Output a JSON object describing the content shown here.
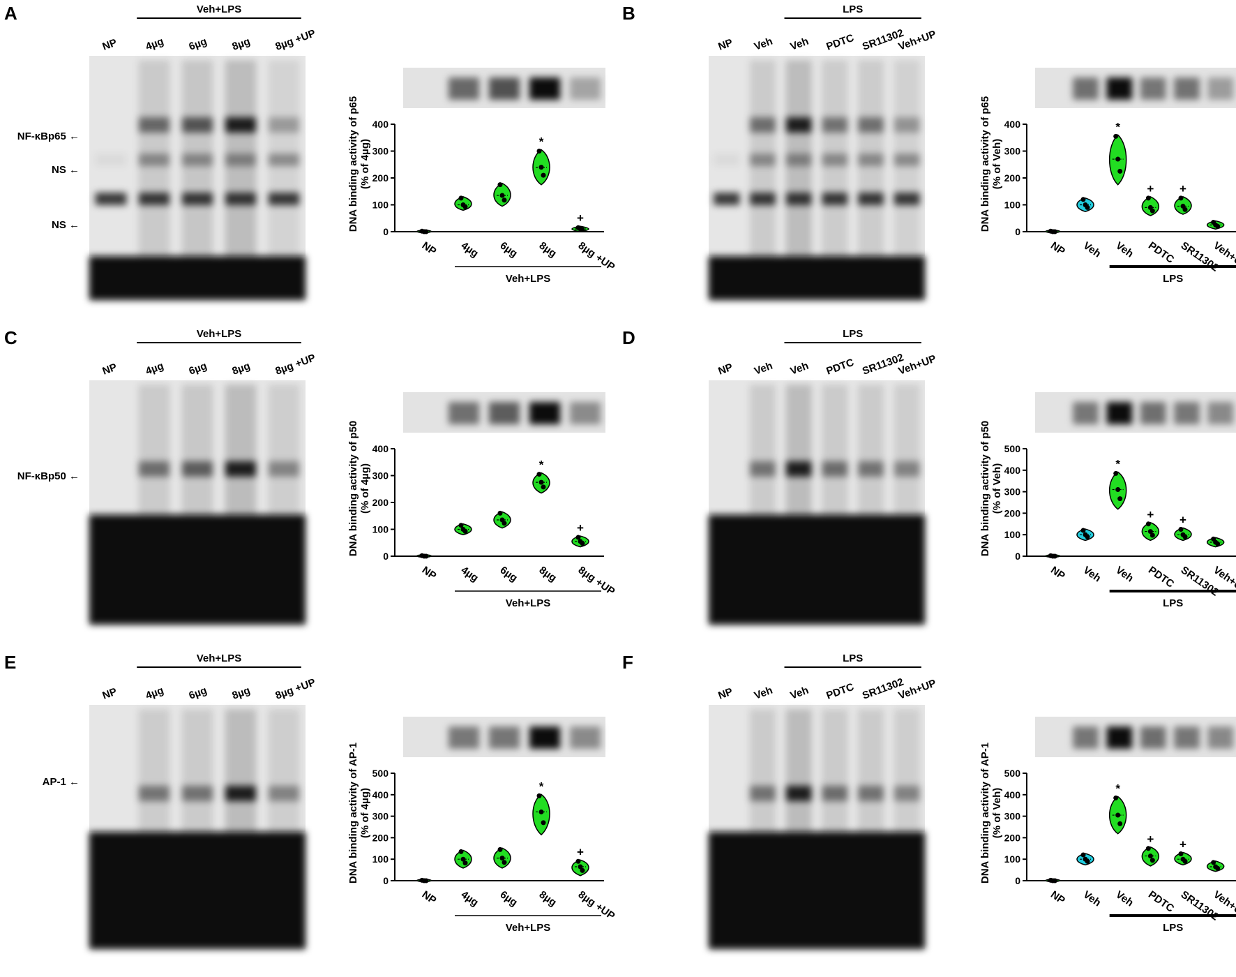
{
  "panels": [
    {
      "letter": "A",
      "variant": "dose",
      "treatment_label": "Veh+LPS",
      "lane_labels": [
        "NP",
        "4µg",
        "6µg",
        "8µg",
        "8µg +UP"
      ],
      "arrows": [
        "NF-κBp65",
        "NS",
        "NS"
      ],
      "ylabel": "DNA binding activity of p65",
      "ylabel2": "(% of 4µg)",
      "chart_data": {
        "type": "violin",
        "categories": [
          "NP",
          "4µg",
          "6µg",
          "8µg",
          "8µg +UP"
        ],
        "values": [
          0,
          100,
          135,
          240,
          10
        ],
        "ranges": [
          [
            0,
            2
          ],
          [
            85,
            125
          ],
          [
            100,
            175
          ],
          [
            180,
            300
          ],
          [
            5,
            15
          ]
        ],
        "significance": [
          "",
          "",
          "",
          "*",
          "+"
        ],
        "yticks": [
          0,
          100,
          200,
          300,
          400
        ],
        "ylim": [
          0,
          400
        ],
        "group_label": "Veh+LPS",
        "colors": [
          "#22dd22",
          "#22dd22",
          "#22dd22",
          "#22dd22",
          "#22dd22"
        ]
      }
    },
    {
      "letter": "B",
      "variant": "treatment",
      "treatment_label": "LPS",
      "lane_labels": [
        "NP",
        "Veh",
        "Veh",
        "PDTC",
        "SR11302",
        "Veh+UP"
      ],
      "arrows": [],
      "ylabel": "DNA binding activity of p65",
      "ylabel2": "(% of Veh)",
      "chart_data": {
        "type": "violin",
        "categories": [
          "NP",
          "Veh",
          "Veh",
          "PDTC",
          "SR11302",
          "Veh+UP"
        ],
        "values": [
          0,
          100,
          270,
          90,
          95,
          25
        ],
        "ranges": [
          [
            0,
            2
          ],
          [
            80,
            120
          ],
          [
            180,
            355
          ],
          [
            65,
            125
          ],
          [
            70,
            125
          ],
          [
            15,
            35
          ]
        ],
        "significance": [
          "",
          "",
          "*",
          "+",
          "+",
          ""
        ],
        "yticks": [
          0,
          100,
          200,
          300,
          400
        ],
        "ylim": [
          0,
          400
        ],
        "group_label": "LPS",
        "colors": [
          "#22dd22",
          "#22ccdd",
          "#22dd22",
          "#22dd22",
          "#22dd22",
          "#22dd22"
        ]
      }
    },
    {
      "letter": "C",
      "variant": "dose",
      "treatment_label": "Veh+LPS",
      "lane_labels": [
        "NP",
        "4µg",
        "6µg",
        "8µg",
        "8µg +UP"
      ],
      "arrows": [
        "NF-κBp50"
      ],
      "ylabel": "DNA binding activity of p50",
      "ylabel2": "(% of 4µg)",
      "chart_data": {
        "type": "violin",
        "categories": [
          "NP",
          "4µg",
          "6µg",
          "8µg",
          "8µg +UP"
        ],
        "values": [
          0,
          100,
          135,
          275,
          55
        ],
        "ranges": [
          [
            0,
            2
          ],
          [
            85,
            115
          ],
          [
            110,
            160
          ],
          [
            240,
            305
          ],
          [
            40,
            70
          ]
        ],
        "significance": [
          "",
          "",
          "",
          "*",
          "+"
        ],
        "yticks": [
          0,
          100,
          200,
          300,
          400
        ],
        "ylim": [
          0,
          400
        ],
        "group_label": "Veh+LPS",
        "colors": [
          "#22dd22",
          "#22dd22",
          "#22dd22",
          "#22dd22",
          "#22dd22"
        ]
      }
    },
    {
      "letter": "D",
      "variant": "treatment",
      "treatment_label": "LPS",
      "lane_labels": [
        "NP",
        "Veh",
        "Veh",
        "PDTC",
        "SR11302",
        "Veh+UP"
      ],
      "arrows": [],
      "ylabel": "DNA binding activity of p50",
      "ylabel2": "(% of Veh)",
      "chart_data": {
        "type": "violin",
        "categories": [
          "NP",
          "Veh",
          "Veh",
          "PDTC",
          "SR11302",
          "Veh+UP"
        ],
        "values": [
          0,
          100,
          310,
          115,
          100,
          65
        ],
        "ranges": [
          [
            0,
            2
          ],
          [
            80,
            120
          ],
          [
            225,
            385
          ],
          [
            80,
            150
          ],
          [
            80,
            125
          ],
          [
            50,
            80
          ]
        ],
        "significance": [
          "",
          "",
          "*",
          "+",
          "+",
          ""
        ],
        "yticks": [
          0,
          100,
          200,
          300,
          400,
          500
        ],
        "ylim": [
          0,
          500
        ],
        "group_label": "LPS",
        "colors": [
          "#22dd22",
          "#22ccdd",
          "#22dd22",
          "#22dd22",
          "#22dd22",
          "#22dd22"
        ]
      }
    },
    {
      "letter": "E",
      "variant": "dose",
      "treatment_label": "Veh+LPS",
      "lane_labels": [
        "NP",
        "4µg",
        "6µg",
        "8µg",
        "8µg +UP"
      ],
      "arrows": [
        "AP-1"
      ],
      "ylabel": "DNA binding activity of AP-1",
      "ylabel2": "(% of 4µg)",
      "chart_data": {
        "type": "violin",
        "categories": [
          "NP",
          "4µg",
          "6µg",
          "8µg",
          "8µg +UP"
        ],
        "values": [
          0,
          100,
          105,
          320,
          65
        ],
        "ranges": [
          [
            0,
            2
          ],
          [
            65,
            135
          ],
          [
            65,
            145
          ],
          [
            220,
            395
          ],
          [
            30,
            90
          ]
        ],
        "significance": [
          "",
          "",
          "",
          "*",
          "+"
        ],
        "yticks": [
          0,
          100,
          200,
          300,
          400,
          500
        ],
        "ylim": [
          0,
          500
        ],
        "group_label": "Veh+LPS",
        "colors": [
          "#22dd22",
          "#22dd22",
          "#22dd22",
          "#22dd22",
          "#22dd22"
        ]
      }
    },
    {
      "letter": "F",
      "variant": "treatment",
      "treatment_label": "LPS",
      "lane_labels": [
        "NP",
        "Veh",
        "Veh",
        "PDTC",
        "SR11302",
        "Veh+UP"
      ],
      "arrows": [],
      "ylabel": "DNA binding activity of AP-1",
      "ylabel2": "(% of Veh)",
      "chart_data": {
        "type": "violin",
        "categories": [
          "NP",
          "Veh",
          "Veh",
          "PDTC",
          "SR11302",
          "Veh+UP"
        ],
        "values": [
          0,
          100,
          305,
          115,
          100,
          65
        ],
        "ranges": [
          [
            0,
            2
          ],
          [
            80,
            120
          ],
          [
            225,
            385
          ],
          [
            75,
            150
          ],
          [
            80,
            125
          ],
          [
            50,
            85
          ]
        ],
        "significance": [
          "",
          "",
          "*",
          "+",
          "+",
          ""
        ],
        "yticks": [
          0,
          100,
          200,
          300,
          400,
          500
        ],
        "ylim": [
          0,
          500
        ],
        "group_label": "LPS",
        "colors": [
          "#22dd22",
          "#22ccdd",
          "#22dd22",
          "#22dd22",
          "#22dd22",
          "#22dd22"
        ]
      }
    }
  ]
}
